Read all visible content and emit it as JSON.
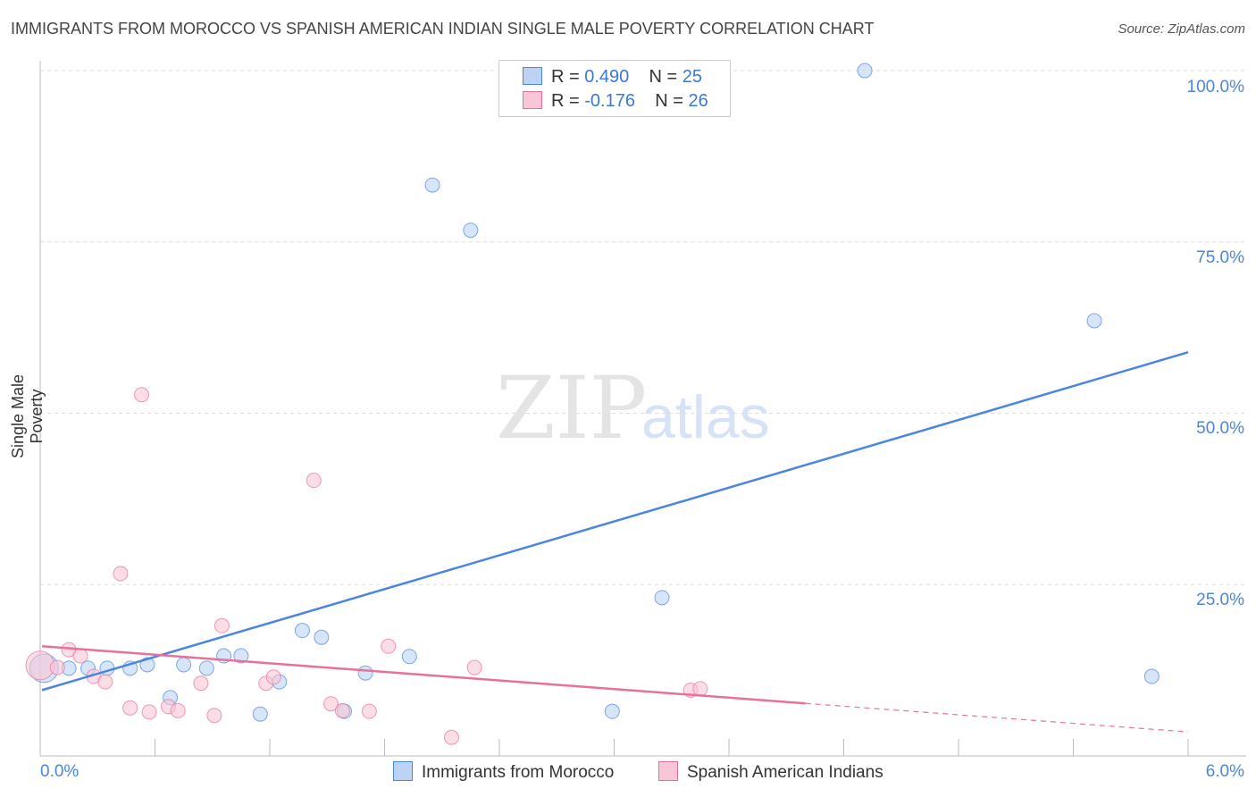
{
  "chart_data": {
    "type": "scatter",
    "title": "IMMIGRANTS FROM MOROCCO VS SPANISH AMERICAN INDIAN SINGLE MALE POVERTY CORRELATION CHART",
    "source": "Source: ZipAtlas.com",
    "xlabel": "",
    "ylabel": "Single Male Poverty",
    "xlim": [
      0,
      6
    ],
    "ylim": [
      0,
      100
    ],
    "x_tick_labels": [
      "0.0%",
      "6.0%"
    ],
    "y_tick_labels": [
      "100.0%",
      "75.0%",
      "50.0%",
      "25.0%"
    ],
    "y_ticks": [
      100,
      75,
      50,
      25
    ],
    "grid": true,
    "legend": {
      "placement": "top-center",
      "entries": [
        {
          "r_label": "R = ",
          "r": "0.490",
          "n_label": "N = ",
          "n": "25"
        },
        {
          "r_label": "R = ",
          "r": "-0.176",
          "n_label": "N = ",
          "n": "26"
        }
      ]
    },
    "series": [
      {
        "name": "Immigrants from Morocco",
        "color": "#4a86e0",
        "fill": "#bcd3f3",
        "trend": {
          "x": [
            0,
            6
          ],
          "y": [
            9.6,
            58.9
          ],
          "dashed_from": null
        },
        "points": [
          [
            0.02,
            12.8
          ],
          [
            0.15,
            12.8
          ],
          [
            0.25,
            12.8
          ],
          [
            0.35,
            12.8
          ],
          [
            0.47,
            12.8
          ],
          [
            0.56,
            13.3
          ],
          [
            0.68,
            8.5
          ],
          [
            0.75,
            13.3
          ],
          [
            0.87,
            12.8
          ],
          [
            0.96,
            14.6
          ],
          [
            1.05,
            14.6
          ],
          [
            1.15,
            6.1
          ],
          [
            1.25,
            10.8
          ],
          [
            1.37,
            18.3
          ],
          [
            1.47,
            17.3
          ],
          [
            1.59,
            6.5
          ],
          [
            1.7,
            12.1
          ],
          [
            1.93,
            14.5
          ],
          [
            2.05,
            83.3
          ],
          [
            2.25,
            76.7
          ],
          [
            2.99,
            6.5
          ],
          [
            3.25,
            23.1
          ],
          [
            4.31,
            100
          ],
          [
            5.51,
            63.5
          ],
          [
            5.81,
            11.6
          ]
        ]
      },
      {
        "name": "Spanish American Indians",
        "color": "#e8709a",
        "fill": "#f8c6d5",
        "trend": {
          "x": [
            0,
            6
          ],
          "y": [
            16.0,
            3.5
          ],
          "dashed_from": 4.0
        },
        "points": [
          [
            0.0,
            13.2
          ],
          [
            0.09,
            12.9
          ],
          [
            0.15,
            15.5
          ],
          [
            0.21,
            14.6
          ],
          [
            0.28,
            11.6
          ],
          [
            0.34,
            10.8
          ],
          [
            0.42,
            26.6
          ],
          [
            0.47,
            7.0
          ],
          [
            0.53,
            52.7
          ],
          [
            0.57,
            6.4
          ],
          [
            0.67,
            7.2
          ],
          [
            0.72,
            6.6
          ],
          [
            0.84,
            10.6
          ],
          [
            0.91,
            5.9
          ],
          [
            0.95,
            19.0
          ],
          [
            1.18,
            10.6
          ],
          [
            1.22,
            11.5
          ],
          [
            1.43,
            40.2
          ],
          [
            1.52,
            7.6
          ],
          [
            1.58,
            6.6
          ],
          [
            1.72,
            6.5
          ],
          [
            1.82,
            16.0
          ],
          [
            2.15,
            2.7
          ],
          [
            2.27,
            12.9
          ],
          [
            3.4,
            9.6
          ],
          [
            3.45,
            9.8
          ]
        ]
      }
    ]
  }
}
